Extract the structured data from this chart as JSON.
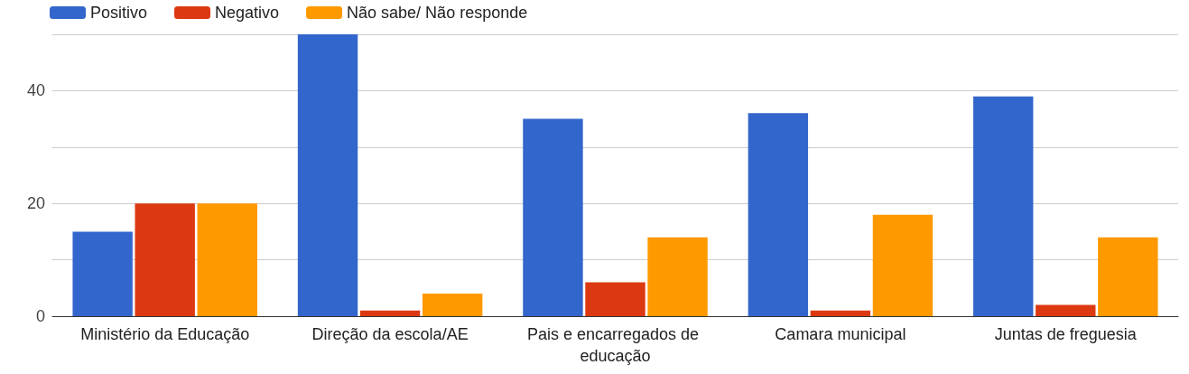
{
  "chart_data": {
    "type": "bar",
    "categories": [
      "Ministério da Educação",
      "Direção da escola/AE",
      "Pais e encarregados de educação",
      "Camara municipal",
      "Juntas de freguesia"
    ],
    "series": [
      {
        "name": "Positivo",
        "color": "#3366cc",
        "values": [
          15,
          50,
          35,
          36,
          39
        ]
      },
      {
        "name": "Negativo",
        "color": "#dc3912",
        "values": [
          20,
          1,
          6,
          1,
          2
        ]
      },
      {
        "name": "Não sabe/ Não responde",
        "color": "#ff9900",
        "values": [
          20,
          4,
          14,
          18,
          14
        ]
      }
    ],
    "ylim": [
      0,
      50
    ],
    "yticks": [
      0,
      {
        "value": 10,
        "label": null
      },
      20,
      {
        "value": 30,
        "label": null
      },
      40,
      {
        "value": 50,
        "label": null
      }
    ],
    "grid": "y",
    "legend": "top left"
  }
}
